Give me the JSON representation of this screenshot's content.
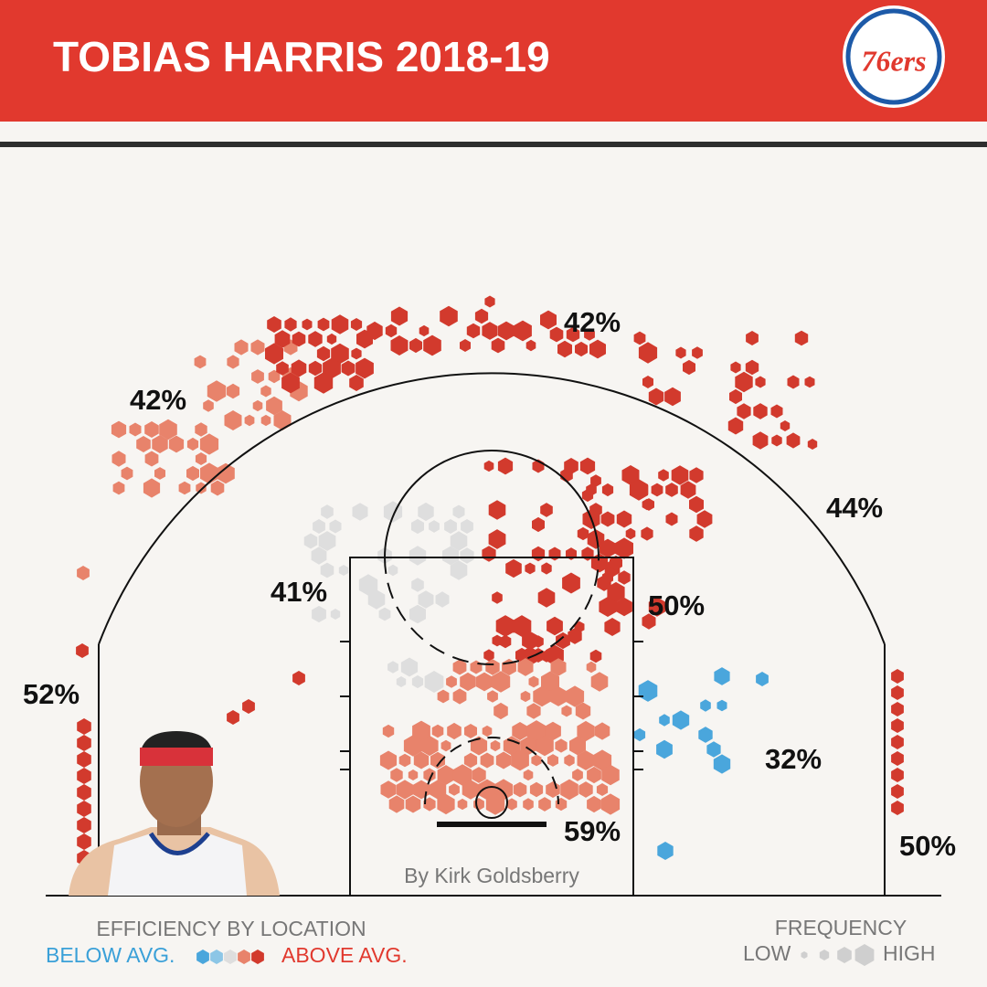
{
  "header": {
    "title": "TOBIAS HARRIS 2018-19",
    "logo": "76ers"
  },
  "zones": [
    {
      "label": "42%"
    },
    {
      "label": "42%"
    },
    {
      "label": "44%"
    },
    {
      "label": "41%"
    },
    {
      "label": "50%"
    },
    {
      "label": "52%"
    },
    {
      "label": "32%"
    },
    {
      "label": "59%"
    },
    {
      "label": "50%"
    }
  ],
  "credit": "By Kirk Goldsberry",
  "legend": {
    "efficiency_title": "EFFICIENCY BY LOCATION",
    "below": "BELOW AVG.",
    "above": "ABOVE AVG.",
    "frequency_title": "FREQUENCY",
    "low": "LOW",
    "high": "HIGH"
  }
}
